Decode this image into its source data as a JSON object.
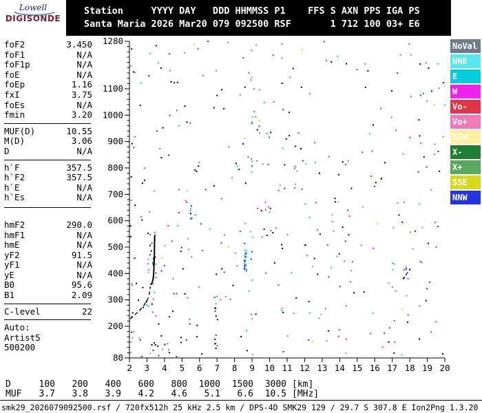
{
  "logo": {
    "top": "Lowell",
    "bottom": "DIGISONDE"
  },
  "header": {
    "line1": "Station     YYYY DAY   DDD HHMMSS P1    FFS S AXN PPS IGA PS",
    "line2": "Santa Maria 2026 Mar20 079 092500 RSF       1 712 100 03+ E6"
  },
  "parameters": {
    "groups": [
      {
        "rows": [
          {
            "label": "foF2",
            "value": "3.450"
          },
          {
            "label": "foF1",
            "value": "N/A"
          },
          {
            "label": "foF1p",
            "value": "N/A"
          },
          {
            "label": "foE",
            "value": "N/A"
          },
          {
            "label": "foEp",
            "value": "1.16"
          },
          {
            "label": "fxI",
            "value": "3.75"
          },
          {
            "label": "foEs",
            "value": "N/A"
          },
          {
            "label": "fmin",
            "value": "3.20"
          }
        ]
      },
      {
        "rows": [
          {
            "label": "MUF(D)",
            "value": "10.55"
          },
          {
            "label": "M(D)",
            "value": "3.06"
          },
          {
            "label": "D",
            "value": "N/A"
          }
        ]
      },
      {
        "rows": [
          {
            "label": "h`F",
            "value": "357.5"
          },
          {
            "label": "h`F2",
            "value": "357.5"
          },
          {
            "label": "h`E",
            "value": "N/A"
          },
          {
            "label": "h`Es",
            "value": "N/A"
          }
        ]
      },
      {
        "rows": [
          {
            "label": "hmF2",
            "value": "290.0"
          },
          {
            "label": "hmF1",
            "value": "N/A"
          },
          {
            "label": "hmE",
            "value": "N/A"
          },
          {
            "label": "yF2",
            "value": "91.5"
          },
          {
            "label": "yF1",
            "value": "N/A"
          },
          {
            "label": "yE",
            "value": "N/A"
          },
          {
            "label": "B0",
            "value": "95.6"
          },
          {
            "label": "B1",
            "value": "2.09"
          }
        ]
      },
      {
        "rows": [
          {
            "label": "C-level",
            "value": "22"
          }
        ]
      },
      {
        "rows": [
          {
            "label": "Auto:"
          },
          {
            "label": "Artist5"
          },
          {
            "label": "500200"
          }
        ]
      }
    ]
  },
  "legend": [
    {
      "label": "NoVal",
      "color": "#6e7b8b"
    },
    {
      "label": "NNE",
      "color": "#55e8ee"
    },
    {
      "label": "E",
      "color": "#00cddd"
    },
    {
      "label": "W",
      "color": "#ee22ee"
    },
    {
      "label": "Vo-",
      "color": "#e03548"
    },
    {
      "label": "Vo+",
      "color": "#ee7ab8"
    },
    {
      "label": "SSW",
      "color": "#ffefa0"
    },
    {
      "label": "X-",
      "color": "#1e7e34"
    },
    {
      "label": "X+",
      "color": "#58a85e"
    },
    {
      "label": "SSE",
      "color": "#d8d81e"
    },
    {
      "label": "NNW",
      "color": "#2336dd"
    }
  ],
  "chart_data": {
    "type": "scatter",
    "description": "Digisonde ionogram: echo virtual height [km] vs sounding frequency [MHz], with ARTIST5 scaled F-trace",
    "x_unit": "MHz",
    "y_unit": "km",
    "x_range": [
      2,
      20
    ],
    "x_ticks": [
      2,
      3,
      4,
      5,
      6,
      7,
      8,
      9,
      10,
      11,
      12,
      13,
      14,
      15,
      16,
      17,
      18,
      19,
      20
    ],
    "y_range": [
      80,
      1280
    ],
    "y_tick_labels": [
      1280,
      1100,
      1000,
      900,
      800,
      700,
      600,
      500,
      400,
      300,
      200,
      80
    ],
    "y_minor_step": 20,
    "trace_solid_f_km": [
      [
        3.2,
        357
      ],
      [
        3.26,
        361
      ],
      [
        3.31,
        368
      ],
      [
        3.35,
        379
      ],
      [
        3.38,
        396
      ],
      [
        3.4,
        422
      ],
      [
        3.42,
        462
      ],
      [
        3.43,
        506
      ],
      [
        3.44,
        545
      ]
    ],
    "trace_dashed_f_km": [
      [
        2.05,
        228
      ],
      [
        2.3,
        243
      ],
      [
        2.55,
        258
      ],
      [
        2.8,
        277
      ],
      [
        3.0,
        297
      ],
      [
        3.1,
        313
      ],
      [
        3.16,
        333
      ],
      [
        3.19,
        350
      ]
    ],
    "noise": {
      "seed": 1337,
      "count": 380,
      "palette": [
        {
          "color": "#000000",
          "w": 0.28
        },
        {
          "color": "#778899",
          "w": 0.14
        },
        {
          "color": "#00cddd",
          "w": 0.14
        },
        {
          "color": "#ee22ee",
          "w": 0.13
        },
        {
          "color": "#2336dd",
          "w": 0.11
        },
        {
          "color": "#e03548",
          "w": 0.07
        },
        {
          "color": "#1e7e34",
          "w": 0.06
        },
        {
          "color": "#d8d81e",
          "w": 0.04
        },
        {
          "color": "#ee7ab8",
          "w": 0.03
        }
      ]
    },
    "stripes": [
      {
        "f": 3.25,
        "df": 0.3,
        "km_min": 200,
        "km_max": 560,
        "n": 28,
        "colors": [
          "#000000",
          "#ee22ee",
          "#00cddd",
          "#2336dd"
        ]
      },
      {
        "f": 8.62,
        "df": 0.06,
        "km_min": 410,
        "km_max": 500,
        "n": 24,
        "colors": [
          "#00cddd",
          "#2336dd"
        ]
      },
      {
        "f": 5.5,
        "df": 0.06,
        "km_min": 590,
        "km_max": 660,
        "n": 8,
        "colors": [
          "#2336dd",
          "#00cddd"
        ]
      },
      {
        "f": 17.9,
        "df": 0.3,
        "km_min": 380,
        "km_max": 425,
        "n": 10,
        "colors": [
          "#ee22ee",
          "#000000",
          "#2336dd"
        ]
      },
      {
        "f": 2.15,
        "df": 0.1,
        "km_min": 90,
        "km_max": 1270,
        "n": 16,
        "colors": [
          "#000000",
          "#778899",
          "#ee22ee"
        ]
      },
      {
        "f": 6.95,
        "df": 0.1,
        "km_min": 90,
        "km_max": 330,
        "n": 10,
        "colors": [
          "#000000",
          "#2336dd"
        ]
      },
      {
        "f": 4.5,
        "df": 2.0,
        "km_min": 85,
        "km_max": 150,
        "n": 14,
        "colors": [
          "#000000",
          "#778899",
          "#2336dd"
        ]
      },
      {
        "f": 9.0,
        "df": 0.04,
        "km_min": 100,
        "km_max": 1250,
        "n": 14,
        "colors": [
          "#00cddd",
          "#2336dd",
          "#ee22ee"
        ]
      }
    ]
  },
  "dmuf": {
    "rows": [
      {
        "label": "D",
        "values": [
          "100",
          "200",
          "400",
          "600",
          "800",
          "1000",
          "1500",
          "3000"
        ],
        "unit": "[km]"
      },
      {
        "label": "MUF",
        "values": [
          "3.7",
          "3.8",
          "3.9",
          "4.2",
          "4.6",
          "5.1",
          "6.6",
          "10.5"
        ],
        "unit": "[MHz]"
      }
    ]
  },
  "footer": "smk29_2026079092500.rsf / 720fx512h 25 kHz 2.5 km / DPS-4D SMK29 129 / 29.7 S 307.8 E Ion2Png 1.3.20"
}
